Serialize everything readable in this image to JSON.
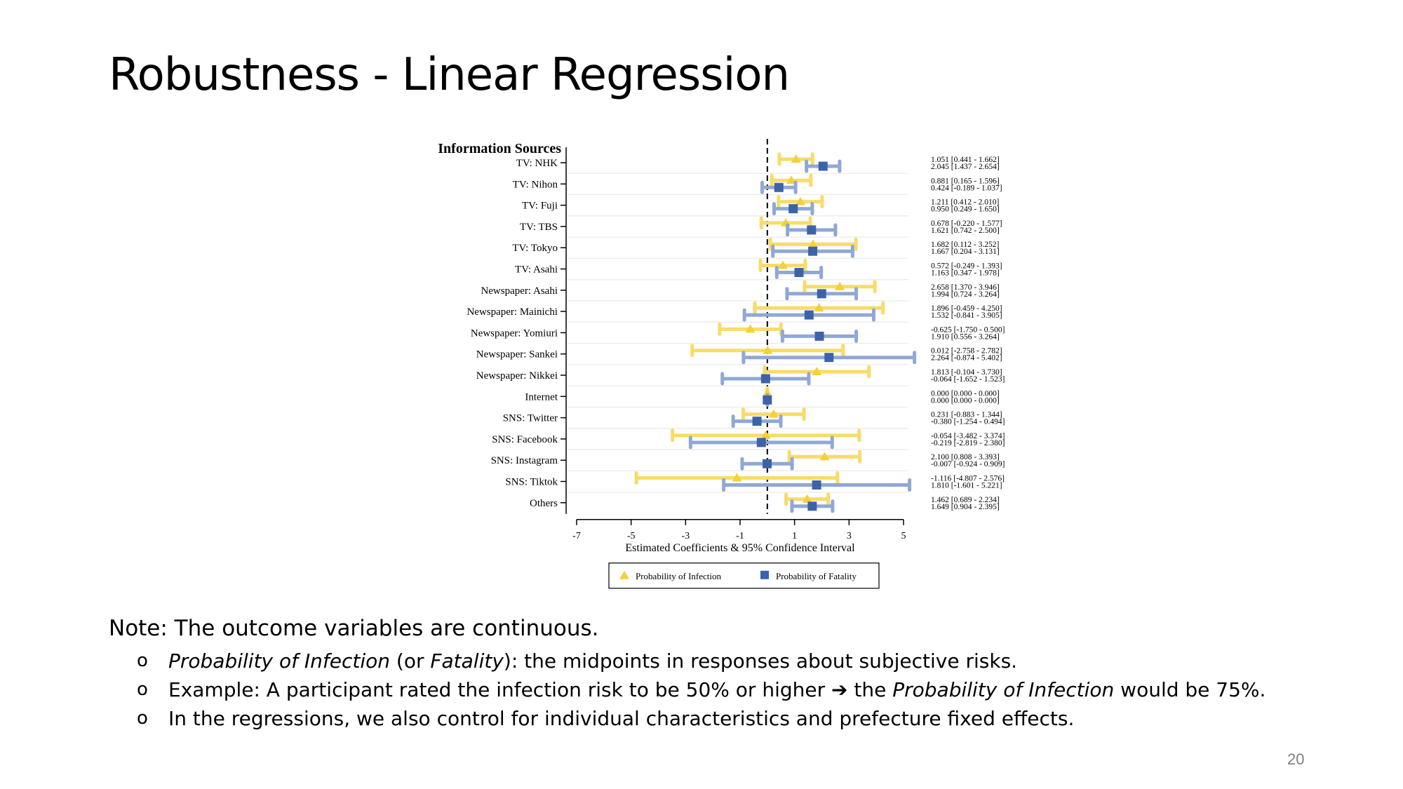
{
  "slide": {
    "title": "Robustness - Linear Regression",
    "page_number": "20",
    "note": {
      "heading": "Note: The outcome variables are continuous.",
      "bullet_mark": "o",
      "bullets": [
        [
          {
            "t": "Probability of Infection",
            "i": true
          },
          {
            "t": " (or "
          },
          {
            "t": "Fatality",
            "i": true
          },
          {
            "t": "): the midpoints in responses about subjective risks."
          }
        ],
        [
          {
            "t": "Example: A participant rated the infection risk to be 50% or higher "
          },
          {
            "t": "➔",
            "b": true
          },
          {
            "t": " the "
          },
          {
            "t": "Probability of Infection",
            "i": true
          },
          {
            "t": " would be 75%."
          }
        ],
        [
          {
            "t": "In the regressions, we also control for individual characteristics and prefecture fixed effects."
          }
        ]
      ]
    }
  },
  "chart_data": {
    "type": "coefficient-plot",
    "title": "Information Sources",
    "xlabel": "Estimated Coefficients & 95% Confidence Interval",
    "xlim": [
      -7,
      5
    ],
    "x_ticks": [
      -7,
      -5,
      -3,
      -1,
      1,
      3,
      5
    ],
    "reference_line": 0,
    "legend_position": "bottom",
    "series": [
      {
        "name": "Probability of Infection",
        "marker": "triangle",
        "color": "#F5D03B",
        "ci_color": "#F8DB6A"
      },
      {
        "name": "Probability of Fatality",
        "marker": "square",
        "color": "#3C63A8",
        "ci_color": "#8FA8D6"
      }
    ],
    "categories": [
      "TV: NHK",
      "TV: Nihon",
      "TV: Fuji",
      "TV: TBS",
      "TV: Tokyo",
      "TV: Asahi",
      "Newspaper: Asahi",
      "Newspaper: Mainichi",
      "Newspaper: Yomiuri",
      "Newspaper: Sankei",
      "Newspaper: Nikkei",
      "Internet",
      "SNS: Twitter",
      "SNS: Facebook",
      "SNS: Instagram",
      "SNS: Tiktok",
      "Others"
    ],
    "estimates": {
      "Probability of Infection": [
        {
          "coef": 1.051,
          "lo": 0.441,
          "hi": 1.662,
          "label": "1.051 [0.441 - 1.662]"
        },
        {
          "coef": 0.881,
          "lo": 0.165,
          "hi": 1.596,
          "label": "0.881 [0.165 - 1.596]"
        },
        {
          "coef": 1.211,
          "lo": 0.412,
          "hi": 2.01,
          "label": "1.211 [0.412 - 2.010]"
        },
        {
          "coef": 0.678,
          "lo": -0.22,
          "hi": 1.577,
          "label": "0.678 [-0.220 - 1.577]"
        },
        {
          "coef": 1.682,
          "lo": 0.112,
          "hi": 3.252,
          "label": "1.682 [0.112 - 3.252]"
        },
        {
          "coef": 0.572,
          "lo": -0.249,
          "hi": 1.393,
          "label": "0.572 [-0.249 - 1.393]"
        },
        {
          "coef": 2.658,
          "lo": 1.37,
          "hi": 3.946,
          "label": "2.658 [1.370 - 3.946]"
        },
        {
          "coef": 1.896,
          "lo": -0.459,
          "hi": 4.25,
          "label": "1.896 [-0.459 - 4.250]"
        },
        {
          "coef": -0.625,
          "lo": -1.75,
          "hi": 0.5,
          "label": "-0.625 [-1.750 - 0.500]"
        },
        {
          "coef": 0.012,
          "lo": -2.758,
          "hi": 2.782,
          "label": "0.012 [-2.758 - 2.782]"
        },
        {
          "coef": 1.813,
          "lo": -0.104,
          "hi": 3.73,
          "label": "1.813 [-0.104 - 3.730]"
        },
        {
          "coef": 0.0,
          "lo": 0.0,
          "hi": 0.0,
          "label": "0.000 [0.000 - 0.000]"
        },
        {
          "coef": 0.231,
          "lo": -0.883,
          "hi": 1.344,
          "label": "0.231 [-0.883 - 1.344]"
        },
        {
          "coef": -0.054,
          "lo": -3.482,
          "hi": 3.374,
          "label": "-0.054 [-3.482 - 3.374]"
        },
        {
          "coef": 2.1,
          "lo": 0.808,
          "hi": 3.393,
          "label": "2.100 [0.808 - 3.393]"
        },
        {
          "coef": -1.116,
          "lo": -4.807,
          "hi": 2.576,
          "label": "-1.116 [-4.807 - 2.576]"
        },
        {
          "coef": 1.462,
          "lo": 0.689,
          "hi": 2.234,
          "label": "1.462 [0.689 - 2.234]"
        }
      ],
      "Probability of Fatality": [
        {
          "coef": 2.045,
          "lo": 1.437,
          "hi": 2.654,
          "label": "2.045 [1.437 - 2.654]"
        },
        {
          "coef": 0.424,
          "lo": -0.189,
          "hi": 1.037,
          "label": "0.424 [-0.189 - 1.037]"
        },
        {
          "coef": 0.95,
          "lo": 0.249,
          "hi": 1.65,
          "label": "0.950 [0.249 - 1.650]"
        },
        {
          "coef": 1.621,
          "lo": 0.742,
          "hi": 2.5,
          "label": "1.621 [0.742 - 2.500]"
        },
        {
          "coef": 1.667,
          "lo": 0.204,
          "hi": 3.131,
          "label": "1.667 [0.204 - 3.131]"
        },
        {
          "coef": 1.163,
          "lo": 0.347,
          "hi": 1.978,
          "label": "1.163 [0.347 - 1.978]"
        },
        {
          "coef": 1.994,
          "lo": 0.724,
          "hi": 3.264,
          "label": "1.994 [0.724 - 3.264]"
        },
        {
          "coef": 1.532,
          "lo": -0.841,
          "hi": 3.905,
          "label": "1.532 [-0.841 - 3.905]"
        },
        {
          "coef": 1.91,
          "lo": 0.556,
          "hi": 3.264,
          "label": "1.910 [0.556 - 3.264]"
        },
        {
          "coef": 2.264,
          "lo": -0.874,
          "hi": 5.402,
          "label": "2.264 [-0.874 - 5.402]"
        },
        {
          "coef": -0.064,
          "lo": -1.652,
          "hi": 1.523,
          "label": "-0.064 [-1.652 - 1.523]"
        },
        {
          "coef": 0.0,
          "lo": 0.0,
          "hi": 0.0,
          "label": "0.000 [0.000 - 0.000]"
        },
        {
          "coef": -0.38,
          "lo": -1.254,
          "hi": 0.494,
          "label": "-0.380 [-1.254 - 0.494]"
        },
        {
          "coef": -0.219,
          "lo": -2.819,
          "hi": 2.38,
          "label": "-0.219 [-2.819 - 2.380]"
        },
        {
          "coef": -0.007,
          "lo": -0.924,
          "hi": 0.909,
          "label": "-0.007 [-0.924 - 0.909]"
        },
        {
          "coef": 1.81,
          "lo": -1.601,
          "hi": 5.221,
          "label": "1.810 [-1.601 - 5.221]"
        },
        {
          "coef": 1.649,
          "lo": 0.904,
          "hi": 2.395,
          "label": "1.649 [0.904 - 2.395]"
        }
      ]
    }
  }
}
